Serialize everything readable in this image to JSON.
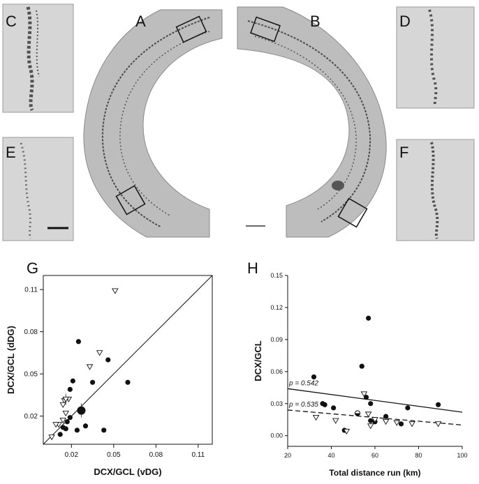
{
  "panels": {
    "A": "A",
    "B": "B",
    "C": "C",
    "D": "D",
    "E": "E",
    "F": "F",
    "G": "G",
    "H": "H"
  },
  "colors": {
    "tissue": "#b9b9b9",
    "tissue_dark": "#8f8f8f",
    "stain": "#3a3a3a",
    "micro_bg": "#d8d8d8",
    "ink": "#111111"
  },
  "chart_data": [
    {
      "type": "scatter",
      "panel": "G",
      "xlabel": "DCX/GCL (vDG)",
      "ylabel": "DCX/GCL (dDG)",
      "xticks": [
        0.02,
        0.05,
        0.08,
        0.11
      ],
      "yticks": [
        0.02,
        0.05,
        0.08,
        0.11
      ],
      "xlim": [
        0.0,
        0.12
      ],
      "ylim": [
        0.0,
        0.12
      ],
      "reference_line": "identity (y = x)",
      "series": [
        {
          "marker": "filled-circle",
          "points": [
            [
              0.014,
              0.012
            ],
            [
              0.017,
              0.016
            ],
            [
              0.016,
              0.011
            ],
            [
              0.012,
              0.007
            ],
            [
              0.019,
              0.019
            ],
            [
              0.021,
              0.045
            ],
            [
              0.019,
              0.039
            ],
            [
              0.025,
              0.073
            ],
            [
              0.024,
              0.01
            ],
            [
              0.03,
              0.013
            ],
            [
              0.035,
              0.044
            ],
            [
              0.046,
              0.06
            ],
            [
              0.043,
              0.01
            ],
            [
              0.06,
              0.044
            ]
          ]
        },
        {
          "marker": "open-triangle",
          "points": [
            [
              0.051,
              0.109
            ],
            [
              0.04,
              0.065
            ],
            [
              0.033,
              0.055
            ],
            [
              0.018,
              0.032
            ],
            [
              0.015,
              0.031
            ],
            [
              0.014,
              0.028
            ],
            [
              0.016,
              0.022
            ],
            [
              0.014,
              0.017
            ],
            [
              0.011,
              0.014
            ],
            [
              0.009,
              0.014
            ],
            [
              0.006,
              0.005
            ]
          ]
        }
      ],
      "means": [
        {
          "marker": "open-triangle",
          "x": 0.016,
          "y": 0.032,
          "xerr": 0.002,
          "yerr": 0.004
        },
        {
          "marker": "large-filled-circle",
          "x": 0.027,
          "y": 0.024,
          "xerr": 0.003,
          "yerr": 0.005
        }
      ]
    },
    {
      "type": "scatter",
      "panel": "H",
      "xlabel": "Total distance run (km)",
      "ylabel": "DCX/GCL",
      "xticks": [
        20,
        40,
        60,
        80,
        100
      ],
      "yticks": [
        0.0,
        0.03,
        0.06,
        0.09,
        0.12,
        0.15
      ],
      "ytick_labels": [
        "0.00",
        "0.03",
        "0.06",
        "0.09",
        "0.12",
        "0.15"
      ],
      "xlim": [
        20,
        100
      ],
      "ylim": [
        -0.01,
        0.15
      ],
      "series": [
        {
          "marker": "filled-circle",
          "points": [
            [
              32,
              0.055
            ],
            [
              36,
              0.03
            ],
            [
              37,
              0.029
            ],
            [
              41,
              0.026
            ],
            [
              54,
              0.065
            ],
            [
              56,
              0.036
            ],
            [
              57,
              0.11
            ],
            [
              58,
              0.03
            ],
            [
              58,
              0.014
            ],
            [
              60,
              0.013
            ],
            [
              65,
              0.018
            ],
            [
              72,
              0.011
            ],
            [
              75,
              0.026
            ],
            [
              89,
              0.029
            ],
            [
              46,
              0.005
            ]
          ]
        },
        {
          "marker": "half-filled-circle",
          "points": [
            [
              52,
              0.021
            ]
          ]
        },
        {
          "marker": "open-triangle",
          "points": [
            [
              33,
              0.017
            ],
            [
              42,
              0.014
            ],
            [
              47,
              0.004
            ],
            [
              55,
              0.039
            ],
            [
              57,
              0.02
            ],
            [
              58,
              0.009
            ],
            [
              60,
              0.015
            ],
            [
              65,
              0.013
            ],
            [
              70,
              0.012
            ],
            [
              77,
              0.011
            ],
            [
              89,
              0.011
            ]
          ]
        }
      ],
      "fits": [
        {
          "style": "solid",
          "x": [
            20,
            100
          ],
          "y": [
            0.044,
            0.022
          ],
          "label": "p = 0.542"
        },
        {
          "style": "dashed",
          "x": [
            20,
            100
          ],
          "y": [
            0.024,
            0.01
          ],
          "label": "p = 0.535"
        }
      ]
    }
  ]
}
